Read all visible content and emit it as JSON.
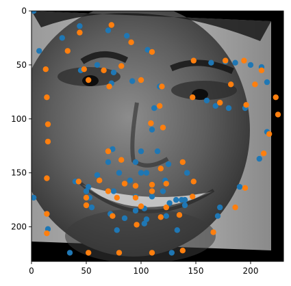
{
  "chart_data": {
    "type": "scatter",
    "title": "",
    "xlabel": "",
    "ylabel": "",
    "xlim": [
      0,
      230
    ],
    "ylim": [
      232,
      0
    ],
    "y_inverted": true,
    "grid": false,
    "legend": "none",
    "xticks": [
      0,
      50,
      100,
      150,
      200
    ],
    "yticks": [
      0,
      50,
      100,
      150,
      200
    ],
    "xtick_labels": [
      "0",
      "50",
      "100",
      "150",
      "200"
    ],
    "ytick_labels": [
      "0",
      "50",
      "100",
      "150",
      "200"
    ],
    "background_image": "grayscale-face-photo",
    "series": [
      {
        "color": "#1f77b4",
        "points": [
          [
            2,
            0
          ],
          [
            44,
            14
          ],
          [
            28,
            25
          ],
          [
            70,
            18
          ],
          [
            87,
            23
          ],
          [
            7,
            37
          ],
          [
            106,
            36
          ],
          [
            45,
            55
          ],
          [
            60,
            50
          ],
          [
            75,
            57
          ],
          [
            92,
            65
          ],
          [
            73,
            67
          ],
          [
            117,
            70
          ],
          [
            164,
            48
          ],
          [
            177,
            47
          ],
          [
            200,
            50
          ],
          [
            186,
            48
          ],
          [
            210,
            52
          ],
          [
            215,
            66
          ],
          [
            168,
            88
          ],
          [
            180,
            90
          ],
          [
            195,
            90
          ],
          [
            160,
            83
          ],
          [
            112,
            90
          ],
          [
            110,
            110
          ],
          [
            95,
            140
          ],
          [
            125,
            142
          ],
          [
            74,
            128
          ],
          [
            100,
            130
          ],
          [
            115,
            130
          ],
          [
            70,
            140
          ],
          [
            60,
            152
          ],
          [
            80,
            150
          ],
          [
            100,
            150
          ],
          [
            90,
            157
          ],
          [
            122,
            157
          ],
          [
            50,
            167
          ],
          [
            75,
            167
          ],
          [
            95,
            172
          ],
          [
            110,
            172
          ],
          [
            137,
            175
          ],
          [
            53,
            173
          ],
          [
            140,
            180
          ],
          [
            95,
            185
          ],
          [
            72,
            188
          ],
          [
            105,
            193
          ],
          [
            190,
            163
          ],
          [
            85,
            192
          ],
          [
            40,
            158
          ],
          [
            52,
            163
          ],
          [
            172,
            182
          ],
          [
            55,
            182
          ],
          [
            103,
            183
          ],
          [
            126,
            178
          ],
          [
            132,
            175
          ],
          [
            140,
            175
          ],
          [
            120,
            167
          ],
          [
            105,
            150
          ],
          [
            142,
            150
          ],
          [
            208,
            137
          ],
          [
            215,
            112
          ],
          [
            123,
            190
          ],
          [
            103,
            197
          ],
          [
            133,
            203
          ],
          [
            170,
            190
          ],
          [
            78,
            203
          ],
          [
            15,
            202
          ],
          [
            2,
            173
          ],
          [
            35,
            224
          ],
          [
            128,
            224
          ]
        ]
      },
      {
        "color": "#ff7f0e",
        "points": [
          [
            73,
            13
          ],
          [
            44,
            20
          ],
          [
            91,
            29
          ],
          [
            33,
            37
          ],
          [
            110,
            38
          ],
          [
            13,
            54
          ],
          [
            48,
            54
          ],
          [
            66,
            55
          ],
          [
            82,
            51
          ],
          [
            52,
            64
          ],
          [
            71,
            70
          ],
          [
            100,
            64
          ],
          [
            119,
            70
          ],
          [
            148,
            46
          ],
          [
            177,
            46
          ],
          [
            194,
            46
          ],
          [
            210,
            55
          ],
          [
            182,
            68
          ],
          [
            204,
            68
          ],
          [
            147,
            80
          ],
          [
            172,
            85
          ],
          [
            196,
            87
          ],
          [
            223,
            80
          ],
          [
            225,
            96
          ],
          [
            14,
            80
          ],
          [
            15,
            105
          ],
          [
            15,
            121
          ],
          [
            109,
            104
          ],
          [
            120,
            108
          ],
          [
            117,
            88
          ],
          [
            70,
            130
          ],
          [
            82,
            138
          ],
          [
            138,
            140
          ],
          [
            118,
            146
          ],
          [
            14,
            155
          ],
          [
            43,
            158
          ],
          [
            62,
            157
          ],
          [
            85,
            160
          ],
          [
            110,
            161
          ],
          [
            148,
            158
          ],
          [
            70,
            167
          ],
          [
            95,
            162
          ],
          [
            123,
            160
          ],
          [
            50,
            173
          ],
          [
            78,
            173
          ],
          [
            100,
            181
          ],
          [
            123,
            182
          ],
          [
            147,
            172
          ],
          [
            95,
            173
          ],
          [
            110,
            167
          ],
          [
            14,
            188
          ],
          [
            14,
            206
          ],
          [
            52,
            224
          ],
          [
            80,
            224
          ],
          [
            110,
            224
          ],
          [
            138,
            222
          ],
          [
            50,
            180
          ],
          [
            74,
            190
          ],
          [
            96,
            198
          ],
          [
            118,
            191
          ],
          [
            135,
            189
          ],
          [
            166,
            205
          ],
          [
            195,
            164
          ],
          [
            212,
            132
          ],
          [
            217,
            114
          ],
          [
            186,
            182
          ]
        ]
      }
    ]
  }
}
